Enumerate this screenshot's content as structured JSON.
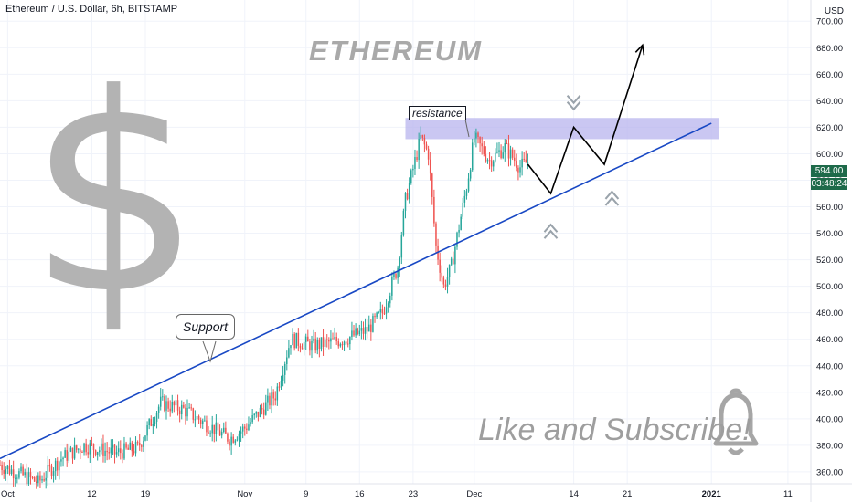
{
  "header": {
    "symbol_title": "Ethereum / U.S. Dollar, 6h, BITSTAMP",
    "currency": "USD"
  },
  "overlay": {
    "title": "ETHEREUM",
    "dollar_sign": "$",
    "resistance_label": "resistance",
    "support_label": "Support",
    "cta_text": "Like and Subscribe!"
  },
  "price_tags": {
    "last_price": "594.00",
    "countdown": "03:48:24"
  },
  "colors": {
    "bull": "#26a69a",
    "bear": "#ef5350",
    "trendline": "#1848c4",
    "resistance_zone": "#b8b4ee",
    "price_tag_bg": "#1e6a4a"
  },
  "chart_data": {
    "type": "candlestick",
    "title": "Ethereum / U.S. Dollar, 6h, BITSTAMP",
    "ylabel": "USD",
    "ylim": [
      351,
      716
    ],
    "y_ticks": [
      360,
      380,
      400,
      420,
      440,
      460,
      480,
      500,
      520,
      540,
      560,
      580,
      600,
      620,
      640,
      660,
      680,
      700
    ],
    "x_ticks": [
      "Oct",
      "12",
      "19",
      "Nov",
      "9",
      "16",
      "23",
      "Dec",
      "14",
      "21",
      "2021",
      "11"
    ],
    "x_tick_dates": [
      "2020-10-01",
      "2020-10-12",
      "2020-10-19",
      "2020-11-01",
      "2020-11-09",
      "2020-11-16",
      "2020-11-23",
      "2020-12-01",
      "2020-12-14",
      "2020-12-21",
      "2021-01-01",
      "2021-01-11"
    ],
    "x_range": [
      "2020-09-30",
      "2021-01-14"
    ],
    "grid": true,
    "last_price": 594.0,
    "price_path": [
      [
        "2020-09-30",
        365
      ],
      [
        "2020-10-05",
        352
      ],
      [
        "2020-10-08",
        370
      ],
      [
        "2020-10-11",
        380
      ],
      [
        "2020-10-15",
        374
      ],
      [
        "2020-10-18",
        378
      ],
      [
        "2020-10-21",
        412
      ],
      [
        "2020-10-24",
        407
      ],
      [
        "2020-10-27",
        396
      ],
      [
        "2020-10-30",
        385
      ],
      [
        "2020-11-01",
        393
      ],
      [
        "2020-11-05",
        418
      ],
      [
        "2020-11-07",
        460
      ],
      [
        "2020-11-10",
        455
      ],
      [
        "2020-11-14",
        460
      ],
      [
        "2020-11-17",
        467
      ],
      [
        "2020-11-19",
        480
      ],
      [
        "2020-11-21",
        515
      ],
      [
        "2020-11-22",
        565
      ],
      [
        "2020-11-24",
        612
      ],
      [
        "2020-11-25",
        600
      ],
      [
        "2020-11-26",
        530
      ],
      [
        "2020-11-27",
        500
      ],
      [
        "2020-11-28",
        515
      ],
      [
        "2020-11-30",
        575
      ],
      [
        "2020-12-01",
        612
      ],
      [
        "2020-12-03",
        595
      ],
      [
        "2020-12-05",
        605
      ],
      [
        "2020-12-07",
        590
      ],
      [
        "2020-12-08",
        594
      ]
    ],
    "resistance_zone": {
      "from": "2020-11-22",
      "to": "2021-01-02",
      "y_low": 611,
      "y_high": 627
    },
    "trendline": [
      [
        "2020-09-30",
        370
      ],
      [
        "2021-01-01",
        623
      ]
    ],
    "projection_path": [
      [
        "2020-12-08",
        592
      ],
      [
        "2020-12-11",
        570
      ],
      [
        "2020-12-14",
        620
      ],
      [
        "2020-12-18",
        592
      ],
      [
        "2020-12-23",
        682
      ]
    ],
    "markers": [
      {
        "symbol": "chevron-down",
        "date": "2020-12-14",
        "price": 637
      },
      {
        "symbol": "chevron-up",
        "date": "2020-12-11",
        "price": 543
      },
      {
        "symbol": "chevron-up",
        "date": "2020-12-19",
        "price": 568
      }
    ]
  }
}
